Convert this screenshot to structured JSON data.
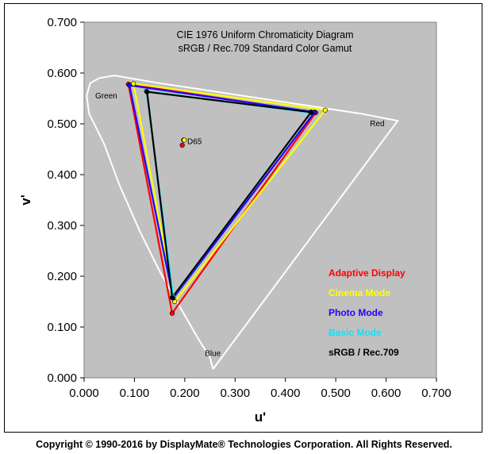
{
  "chart_data": {
    "type": "scatter",
    "title": "CIE 1976 Uniform Chromaticity Diagram",
    "subtitle": "sRGB / Rec.709 Standard Color Gamut",
    "xlabel": "u'",
    "ylabel": "v'",
    "xlim": [
      0,
      0.7
    ],
    "ylim": [
      0,
      0.7
    ],
    "x_ticks": [
      "0.000",
      "0.100",
      "0.200",
      "0.300",
      "0.400",
      "0.500",
      "0.600",
      "0.700"
    ],
    "y_ticks": [
      "0.000",
      "0.100",
      "0.200",
      "0.300",
      "0.400",
      "0.500",
      "0.600",
      "0.700"
    ],
    "background": "#c0c0c0",
    "region_labels": [
      {
        "text": "Green",
        "u": 0.022,
        "v": 0.55
      },
      {
        "text": "Red",
        "u": 0.568,
        "v": 0.495
      },
      {
        "text": "Blue",
        "u": 0.24,
        "v": 0.043
      },
      {
        "text": "D65",
        "u": 0.205,
        "v": 0.46
      }
    ],
    "spectral_locus": [
      [
        0.256,
        0.017
      ],
      [
        0.25,
        0.04
      ],
      [
        0.225,
        0.08
      ],
      [
        0.19,
        0.14
      ],
      [
        0.15,
        0.21
      ],
      [
        0.11,
        0.29
      ],
      [
        0.07,
        0.38
      ],
      [
        0.04,
        0.46
      ],
      [
        0.01,
        0.52
      ],
      [
        0.005,
        0.555
      ],
      [
        0.012,
        0.58
      ],
      [
        0.03,
        0.59
      ],
      [
        0.06,
        0.595
      ],
      [
        0.09,
        0.59
      ],
      [
        0.15,
        0.58
      ],
      [
        0.25,
        0.565
      ],
      [
        0.35,
        0.55
      ],
      [
        0.45,
        0.535
      ],
      [
        0.55,
        0.52
      ],
      [
        0.623,
        0.506
      ],
      [
        0.256,
        0.017
      ]
    ],
    "series": [
      {
        "name": "Adaptive Display",
        "color": "#ff0000",
        "points": [
          [
            0.088,
            0.578
          ],
          [
            0.46,
            0.522
          ],
          [
            0.175,
            0.127
          ]
        ],
        "white": [
          0.195,
          0.458
        ]
      },
      {
        "name": "Cinema Mode",
        "color": "#ffff00",
        "points": [
          [
            0.098,
            0.579
          ],
          [
            0.479,
            0.527
          ],
          [
            0.18,
            0.15
          ]
        ],
        "white": [
          0.199,
          0.468
        ]
      },
      {
        "name": "Photo Mode",
        "color": "#2200ff",
        "points": [
          [
            0.09,
            0.576
          ],
          [
            0.458,
            0.523
          ],
          [
            0.177,
            0.157
          ]
        ],
        "white": [
          0.198,
          0.468
        ]
      },
      {
        "name": "Basic Mode",
        "color": "#00e6ff",
        "points": [
          [
            0.124,
            0.564
          ],
          [
            0.45,
            0.522
          ],
          [
            0.177,
            0.16
          ]
        ],
        "white": [
          0.198,
          0.468
        ]
      },
      {
        "name": "sRGB / Rec.709",
        "color": "#000000",
        "points": [
          [
            0.125,
            0.563
          ],
          [
            0.451,
            0.523
          ],
          [
            0.175,
            0.158
          ]
        ],
        "white": [
          0.198,
          0.468
        ]
      }
    ],
    "legend_position": "bottom-right"
  },
  "footer": {
    "copyright": "Copyright © 1990-2016 by DisplayMate® Technologies Corporation. All Rights Reserved."
  }
}
